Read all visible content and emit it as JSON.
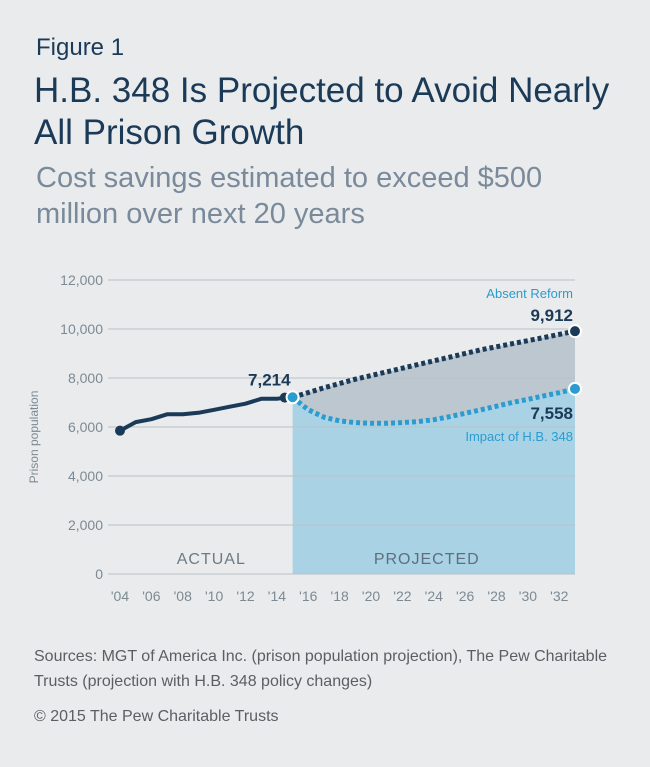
{
  "header": {
    "figure_label": "Figure 1",
    "title": "H.B. 348 Is Projected to Avoid Nearly All Prison Growth",
    "subtitle": "Cost savings estimated to exceed $500 million over next 20 years"
  },
  "footer": {
    "sources": "Sources: MGT of America Inc. (prison population projection), The Pew Charitable Trusts (projection with H.B. 348 policy changes)",
    "copyright": "© 2015 The Pew Charitable Trusts"
  },
  "colors": {
    "actual": "#1b3a57",
    "absent_reform": "#1b3a57",
    "impact": "#2b9ccf",
    "projected_fill": "#a9d3e5",
    "gap_fill": "#bcc7d0",
    "axis_text": "#7d8a94"
  },
  "chart_data": {
    "type": "line",
    "ylabel": "Prison population",
    "xlabel": "",
    "ylim": [
      0,
      12000
    ],
    "yticks": [
      0,
      2000,
      4000,
      6000,
      8000,
      10000,
      12000
    ],
    "ytick_labels": [
      "0",
      "2,000",
      "4,000",
      "6,000",
      "8,000",
      "10,000",
      "12,000"
    ],
    "xlim": [
      2004,
      2033
    ],
    "xticks": [
      2004,
      2006,
      2008,
      2010,
      2012,
      2014,
      2016,
      2018,
      2020,
      2022,
      2024,
      2026,
      2028,
      2030,
      2032
    ],
    "xtick_labels": [
      "'04",
      "'06",
      "'08",
      "'10",
      "'12",
      "'14",
      "'16",
      "'18",
      "'20",
      "'22",
      "'24",
      "'26",
      "'28",
      "'30",
      "'32"
    ],
    "regions": {
      "actual_label": "ACTUAL",
      "projected_label": "PROJECTED",
      "projected_start": 2015,
      "projected_end": 2033
    },
    "series": [
      {
        "name": "Actual",
        "style": "solid",
        "x": [
          2004,
          2005,
          2006,
          2007,
          2008,
          2009,
          2010,
          2011,
          2012,
          2013,
          2014,
          2014.5
        ],
        "values": [
          5850,
          6200,
          6320,
          6520,
          6520,
          6580,
          6700,
          6830,
          6950,
          7150,
          7150,
          7200
        ]
      },
      {
        "name": "Absent Reform",
        "style": "dotted",
        "x": [
          2015,
          2017,
          2019,
          2021,
          2023,
          2025,
          2027,
          2029,
          2031,
          2033
        ],
        "values": [
          7214,
          7600,
          7950,
          8250,
          8550,
          8850,
          9150,
          9400,
          9650,
          9912
        ]
      },
      {
        "name": "Impact of H.B. 348",
        "style": "dotted",
        "x": [
          2015,
          2016,
          2017,
          2018,
          2019,
          2020,
          2021,
          2022,
          2023,
          2024,
          2025,
          2026,
          2027,
          2028,
          2029,
          2030,
          2031,
          2032,
          2033
        ],
        "values": [
          7214,
          6700,
          6400,
          6250,
          6180,
          6150,
          6150,
          6180,
          6220,
          6300,
          6420,
          6560,
          6700,
          6850,
          7000,
          7130,
          7270,
          7400,
          7558
        ]
      }
    ],
    "annotations": {
      "start_value": "7,214",
      "absent_end_value": "9,912",
      "impact_end_value": "7,558",
      "absent_label": "Absent Reform",
      "impact_label": "Impact of H.B. 348"
    }
  }
}
